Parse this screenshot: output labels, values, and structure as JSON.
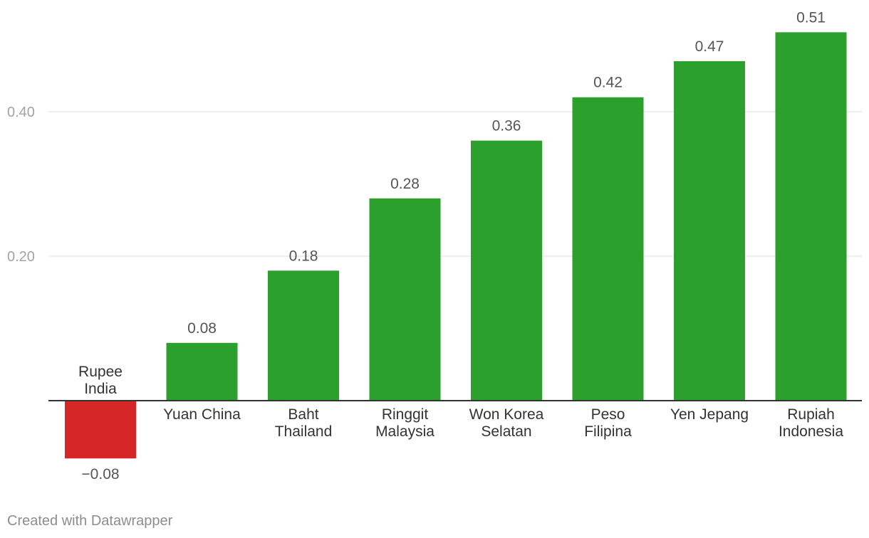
{
  "chart_data": {
    "type": "bar",
    "categories": [
      [
        "Rupee",
        "India"
      ],
      [
        "Yuan China"
      ],
      [
        "Baht",
        "Thailand"
      ],
      [
        "Ringgit",
        "Malaysia"
      ],
      [
        "Won Korea",
        "Selatan"
      ],
      [
        "Peso",
        "Filipina"
      ],
      [
        "Yen Jepang"
      ],
      [
        "Rupiah",
        "Indonesia"
      ]
    ],
    "values": [
      -0.08,
      0.08,
      0.18,
      0.28,
      0.36,
      0.42,
      0.47,
      0.51
    ],
    "value_labels": [
      "−0.08",
      "0.08",
      "0.18",
      "0.28",
      "0.36",
      "0.42",
      "0.47",
      "0.51"
    ],
    "y_ticks": [
      0.2,
      0.4
    ],
    "y_tick_labels": [
      "0.20",
      "0.40"
    ],
    "ylim": [
      -0.08,
      0.51
    ],
    "grid": true,
    "colors": {
      "positive": "#2ca02c",
      "negative": "#d62728"
    }
  },
  "footer": "Created with Datawrapper"
}
